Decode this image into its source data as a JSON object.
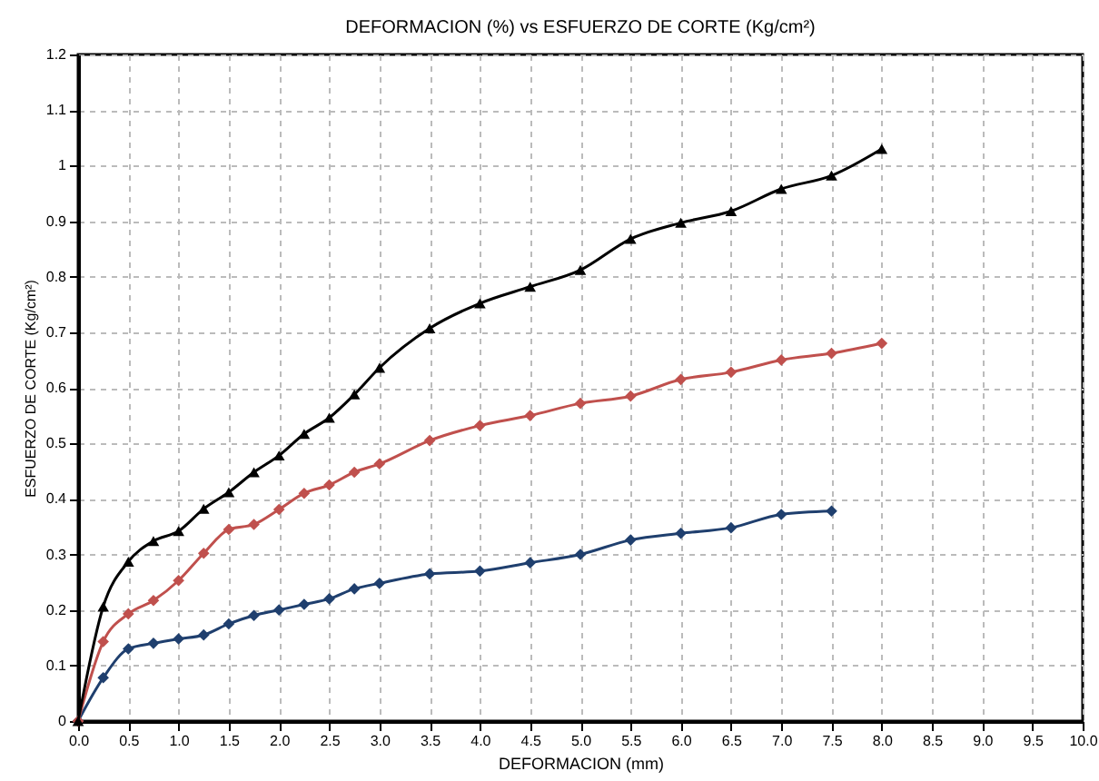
{
  "chart_data": {
    "type": "line",
    "title": "DEFORMACION (%) vs ESFUERZO DE CORTE (Kg/cm²)",
    "xlabel": "DEFORMACION (mm)",
    "ylabel": "ESFUERZO DE CORTE (Kg/cm²)",
    "xlim": [
      0,
      10
    ],
    "ylim": [
      0,
      1.2
    ],
    "xticks": [
      {
        "value": 0,
        "label": "0.0"
      },
      {
        "value": 0.5,
        "label": "0.5"
      },
      {
        "value": 1,
        "label": "1.0"
      },
      {
        "value": 1.5,
        "label": "1.5"
      },
      {
        "value": 2,
        "label": "2.0"
      },
      {
        "value": 2.5,
        "label": "2.5"
      },
      {
        "value": 3,
        "label": "3.0"
      },
      {
        "value": 3.5,
        "label": "3.5"
      },
      {
        "value": 4,
        "label": "4.0"
      },
      {
        "value": 4.5,
        "label": "4.5"
      },
      {
        "value": 5,
        "label": "5.0"
      },
      {
        "value": 5.5,
        "label": "5.5"
      },
      {
        "value": 6,
        "label": "6.0"
      },
      {
        "value": 6.5,
        "label": "6.5"
      },
      {
        "value": 7,
        "label": "7.0"
      },
      {
        "value": 7.5,
        "label": "7.5"
      },
      {
        "value": 8,
        "label": "8.0"
      },
      {
        "value": 8.5,
        "label": "8.5"
      },
      {
        "value": 9,
        "label": "9.0"
      },
      {
        "value": 9.5,
        "label": "9.5"
      },
      {
        "value": 10,
        "label": "10.0"
      }
    ],
    "yticks": [
      0,
      0.1,
      0.2,
      0.3,
      0.4,
      0.5,
      0.6,
      0.7,
      0.8,
      0.9,
      1,
      1.1,
      1.2
    ],
    "grid": true,
    "line_style": "solid",
    "series": [
      {
        "color": "#1f3f6e",
        "marker": "diamond",
        "x": [
          0,
          0.25,
          0.5,
          0.75,
          1,
          1.25,
          1.5,
          1.75,
          2,
          2.25,
          2.5,
          2.75,
          3,
          3.5,
          4,
          4.5,
          5,
          5.5,
          6,
          6.5,
          7,
          7.5
        ],
        "values": [
          0,
          0.078,
          0.13,
          0.14,
          0.148,
          0.155,
          0.175,
          0.19,
          0.2,
          0.21,
          0.22,
          0.238,
          0.248,
          0.265,
          0.27,
          0.285,
          0.3,
          0.326,
          0.338,
          0.348,
          0.372,
          0.378
        ]
      },
      {
        "color": "#c0504d",
        "marker": "diamond",
        "x": [
          0,
          0.25,
          0.5,
          0.75,
          1,
          1.25,
          1.5,
          1.75,
          2,
          2.25,
          2.5,
          2.75,
          3,
          3.5,
          4,
          4.5,
          5,
          5.5,
          6,
          6.5,
          7,
          7.5,
          8
        ],
        "values": [
          0,
          0.143,
          0.193,
          0.217,
          0.253,
          0.302,
          0.345,
          0.354,
          0.381,
          0.41,
          0.425,
          0.448,
          0.463,
          0.505,
          0.532,
          0.55,
          0.572,
          0.585,
          0.615,
          0.628,
          0.65,
          0.662,
          0.68
        ]
      },
      {
        "color": "#000000",
        "marker": "triangle",
        "x": [
          0,
          0.25,
          0.5,
          0.75,
          1,
          1.25,
          1.5,
          1.75,
          2,
          2.25,
          2.5,
          2.75,
          3,
          3.5,
          4,
          4.5,
          5,
          5.5,
          6,
          6.5,
          7,
          7.5,
          8
        ],
        "values": [
          0,
          0.206,
          0.287,
          0.324,
          0.342,
          0.382,
          0.412,
          0.448,
          0.478,
          0.517,
          0.546,
          0.588,
          0.636,
          0.707,
          0.752,
          0.782,
          0.812,
          0.868,
          0.897,
          0.918,
          0.958,
          0.982,
          1.03
        ]
      }
    ]
  }
}
